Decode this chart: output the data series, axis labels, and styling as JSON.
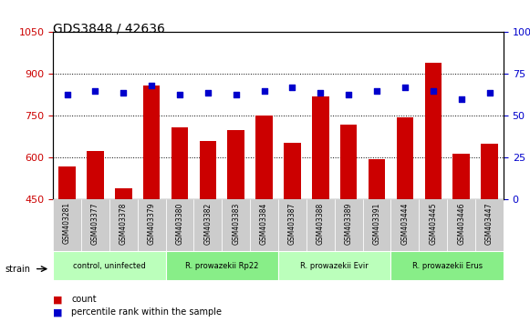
{
  "title": "GDS3848 / 42636",
  "samples": [
    "GSM403281",
    "GSM403377",
    "GSM403378",
    "GSM403379",
    "GSM403380",
    "GSM403382",
    "GSM403383",
    "GSM403384",
    "GSM403387",
    "GSM403388",
    "GSM403389",
    "GSM403391",
    "GSM403444",
    "GSM403445",
    "GSM403446",
    "GSM403447"
  ],
  "counts": [
    570,
    625,
    490,
    860,
    710,
    660,
    700,
    750,
    655,
    820,
    720,
    595,
    745,
    940,
    615,
    650
  ],
  "percentiles": [
    63,
    65,
    64,
    68,
    63,
    64,
    63,
    65,
    67,
    64,
    63,
    65,
    67,
    65,
    60,
    64
  ],
  "bar_color": "#cc0000",
  "dot_color": "#0000cc",
  "ylim_left": [
    450,
    1050
  ],
  "ylim_right": [
    0,
    100
  ],
  "yticks_left": [
    450,
    600,
    750,
    900,
    1050
  ],
  "yticks_right": [
    0,
    25,
    50,
    75,
    100
  ],
  "groups": [
    {
      "label": "control, uninfected",
      "start": 0,
      "end": 3,
      "color": "#bbffbb"
    },
    {
      "label": "R. prowazekii Rp22",
      "start": 4,
      "end": 7,
      "color": "#88ee88"
    },
    {
      "label": "R. prowazekii Evir",
      "start": 8,
      "end": 11,
      "color": "#bbffbb"
    },
    {
      "label": "R. prowazekii Erus",
      "start": 12,
      "end": 15,
      "color": "#88ee88"
    }
  ],
  "strain_label": "strain",
  "legend_count_label": "count",
  "legend_pct_label": "percentile rank within the sample"
}
